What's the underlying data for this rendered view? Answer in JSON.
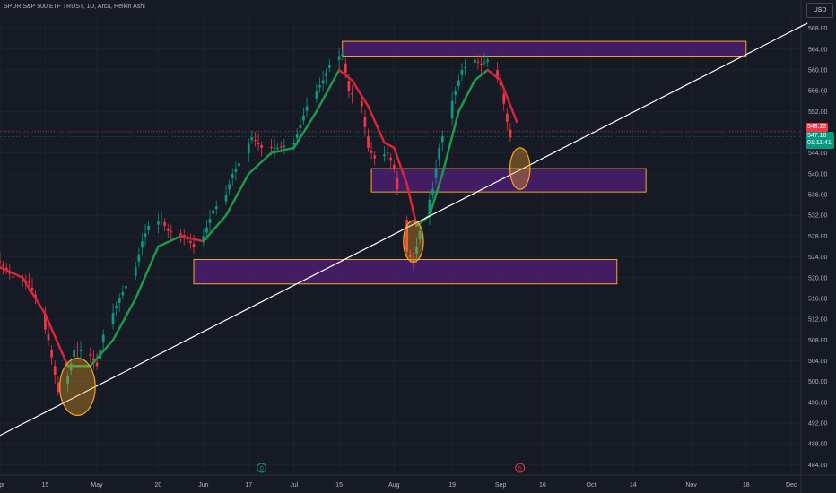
{
  "symbol_title": "SPDR S&P 500 ETF TRUST, 1D, Arca, Heikin Ashi",
  "currency": "USD",
  "price_tags": {
    "previous": "548.22",
    "last": "547.16",
    "countdown": "01:11:41"
  },
  "colors": {
    "bg": "#161a25",
    "up": "#089981",
    "down": "#f23645",
    "ma_up": "#1a9b49",
    "ma_down": "#d8253a",
    "zone_fill": "#4a1f6e",
    "zone_stroke": "#f5a623",
    "circle": "#f5a623",
    "trendline": "#ffffff"
  },
  "event_icons": [
    {
      "name": "dividend-icon",
      "glyph": "D"
    },
    {
      "name": "split-icon",
      "glyph": "S"
    }
  ],
  "chart_data": {
    "type": "candlestick",
    "title": "SPDR S&P 500 ETF TRUST, 1D, Arca, Heikin Ashi",
    "x_range": [
      "2024-04-01",
      "2024-12-05"
    ],
    "y_range": [
      482,
      570
    ],
    "y_ticks": [
      484,
      488,
      492,
      496,
      500,
      504,
      508,
      512,
      516,
      520,
      524,
      528,
      532,
      536,
      540,
      544,
      548,
      552,
      556,
      560,
      564,
      568
    ],
    "x_ticks": [
      {
        "label": "Apr",
        "date": "2024-04-01"
      },
      {
        "label": "15",
        "date": "2024-04-15"
      },
      {
        "label": "May",
        "date": "2024-05-01"
      },
      {
        "label": "20",
        "date": "2024-05-20"
      },
      {
        "label": "Jun",
        "date": "2024-06-03"
      },
      {
        "label": "17",
        "date": "2024-06-17"
      },
      {
        "label": "Jul",
        "date": "2024-07-01"
      },
      {
        "label": "15",
        "date": "2024-07-15"
      },
      {
        "label": "Aug",
        "date": "2024-08-01"
      },
      {
        "label": "19",
        "date": "2024-08-19"
      },
      {
        "label": "Sep",
        "date": "2024-09-03"
      },
      {
        "label": "16",
        "date": "2024-09-16"
      },
      {
        "label": "Oct",
        "date": "2024-10-01"
      },
      {
        "label": "14",
        "date": "2024-10-14"
      },
      {
        "label": "Nov",
        "date": "2024-11-01"
      },
      {
        "label": "18",
        "date": "2024-11-18"
      },
      {
        "label": "Dec",
        "date": "2024-12-02"
      }
    ],
    "close_path": [
      [
        "2024-04-01",
        523
      ],
      [
        "2024-04-05",
        520
      ],
      [
        "2024-04-10",
        519
      ],
      [
        "2024-04-12",
        516
      ],
      [
        "2024-04-16",
        508
      ],
      [
        "2024-04-19",
        498
      ],
      [
        "2024-04-22",
        501
      ],
      [
        "2024-04-24",
        506
      ],
      [
        "2024-04-26",
        506
      ],
      [
        "2024-04-29",
        505
      ],
      [
        "2024-05-01",
        503
      ],
      [
        "2024-05-03",
        509
      ],
      [
        "2024-05-08",
        516
      ],
      [
        "2024-05-13",
        522
      ],
      [
        "2024-05-15",
        527
      ],
      [
        "2024-05-17",
        530
      ],
      [
        "2024-05-21",
        531
      ],
      [
        "2024-05-23",
        529
      ],
      [
        "2024-05-28",
        528
      ],
      [
        "2024-05-31",
        526
      ],
      [
        "2024-06-03",
        528
      ],
      [
        "2024-06-06",
        533
      ],
      [
        "2024-06-10",
        536
      ],
      [
        "2024-06-12",
        540
      ],
      [
        "2024-06-14",
        542
      ],
      [
        "2024-06-18",
        547
      ],
      [
        "2024-06-21",
        545
      ],
      [
        "2024-06-26",
        545
      ],
      [
        "2024-07-01",
        546
      ],
      [
        "2024-07-05",
        553
      ],
      [
        "2024-07-10",
        558
      ],
      [
        "2024-07-12",
        561
      ],
      [
        "2024-07-16",
        563
      ],
      [
        "2024-07-18",
        556
      ],
      [
        "2024-07-22",
        553
      ],
      [
        "2024-07-24",
        545
      ],
      [
        "2024-07-26",
        543
      ],
      [
        "2024-07-30",
        544
      ],
      [
        "2024-08-01",
        541
      ],
      [
        "2024-08-05",
        525
      ],
      [
        "2024-08-07",
        523
      ],
      [
        "2024-08-09",
        529
      ],
      [
        "2024-08-13",
        537
      ],
      [
        "2024-08-15",
        545
      ],
      [
        "2024-08-19",
        554
      ],
      [
        "2024-08-22",
        560
      ],
      [
        "2024-08-26",
        562
      ],
      [
        "2024-08-28",
        561
      ],
      [
        "2024-08-30",
        562
      ],
      [
        "2024-09-03",
        557
      ],
      [
        "2024-09-05",
        550
      ],
      [
        "2024-09-06",
        547
      ]
    ],
    "moving_average": [
      [
        "2024-04-01",
        522
      ],
      [
        "2024-04-08",
        520
      ],
      [
        "2024-04-15",
        513
      ],
      [
        "2024-04-22",
        503
      ],
      [
        "2024-04-29",
        503
      ],
      [
        "2024-05-06",
        508
      ],
      [
        "2024-05-13",
        516
      ],
      [
        "2024-05-20",
        526
      ],
      [
        "2024-05-27",
        528
      ],
      [
        "2024-06-03",
        527
      ],
      [
        "2024-06-10",
        532
      ],
      [
        "2024-06-17",
        540
      ],
      [
        "2024-06-24",
        544
      ],
      [
        "2024-07-01",
        545
      ],
      [
        "2024-07-08",
        552
      ],
      [
        "2024-07-15",
        560
      ],
      [
        "2024-07-19",
        558
      ],
      [
        "2024-07-24",
        553
      ],
      [
        "2024-07-29",
        546
      ],
      [
        "2024-08-01",
        545
      ],
      [
        "2024-08-05",
        538
      ],
      [
        "2024-08-08",
        530
      ],
      [
        "2024-08-12",
        532
      ],
      [
        "2024-08-16",
        540
      ],
      [
        "2024-08-21",
        552
      ],
      [
        "2024-08-26",
        558
      ],
      [
        "2024-08-30",
        560
      ],
      [
        "2024-09-03",
        558
      ],
      [
        "2024-09-08",
        550
      ]
    ],
    "zones": [
      {
        "x_start": "2024-07-16",
        "x_end": "2024-11-18",
        "y_low": 562.5,
        "y_high": 565.5
      },
      {
        "x_start": "2024-07-25",
        "x_end": "2024-10-18",
        "y_low": 536.5,
        "y_high": 541
      },
      {
        "x_start": "2024-05-31",
        "x_end": "2024-10-09",
        "y_low": 518.8,
        "y_high": 523.5
      }
    ],
    "trendline": {
      "start": [
        "2024-03-30",
        489
      ],
      "end": [
        "2024-12-07",
        569
      ]
    },
    "circles": [
      {
        "date": "2024-04-25",
        "price": 499,
        "rx_days": 5.5,
        "ry_price": 5.5
      },
      {
        "date": "2024-08-07",
        "price": 527,
        "rx_days": 3.1,
        "ry_price": 4
      },
      {
        "date": "2024-09-09",
        "price": 541,
        "rx_days": 3.1,
        "ry_price": 4
      }
    ],
    "event_markers": [
      {
        "date": "2024-06-21",
        "type": "dividend"
      },
      {
        "date": "2024-09-09",
        "type": "split"
      }
    ]
  }
}
